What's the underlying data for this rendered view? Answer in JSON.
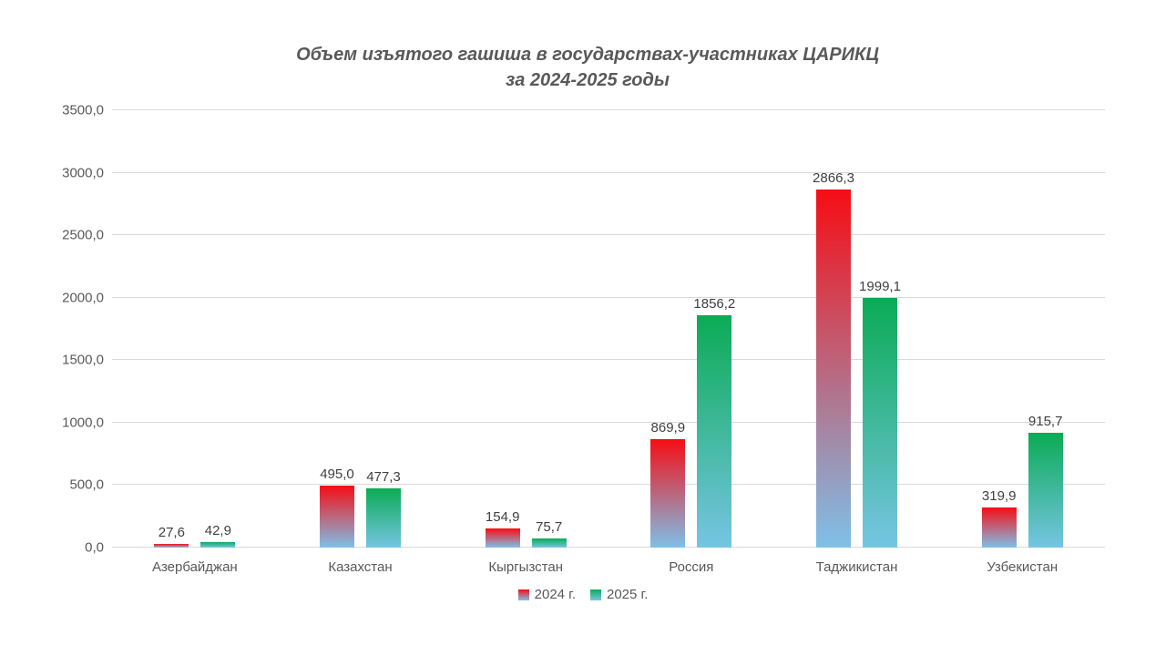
{
  "title": {
    "line1": "Объем изъятого гашиша в государствах-участниках ЦАРИКЦ",
    "line2": "за 2024-2025 годы"
  },
  "colors": {
    "background": "#ffffff",
    "title_text": "#595959",
    "axis_text": "#595959",
    "data_label_text": "#404040",
    "gridline": "#d9d9d9",
    "series_2024_top": "#f60d14",
    "series_2024_bottom": "#7fc0e8",
    "series_2025_top": "#0bab55",
    "series_2025_bottom": "#76c5e3"
  },
  "legend": {
    "items": [
      {
        "label": "2024 г.",
        "series_key": "2024"
      },
      {
        "label": "2025 г.",
        "series_key": "2025"
      }
    ]
  },
  "chart_data": {
    "type": "bar",
    "title": "Объем изъятого гашиша в государствах-участниках ЦАРИКЦ за 2024-2025 годы",
    "categories": [
      "Азербайджан",
      "Казахстан",
      "Кыргызстан",
      "Россия",
      "Таджикистан",
      "Узбекистан"
    ],
    "series": [
      {
        "name": "2024 г.",
        "values": [
          27.6,
          495.0,
          154.9,
          869.9,
          2866.3,
          319.9
        ],
        "labels": [
          "27,6",
          "495,0",
          "154,9",
          "869,9",
          "2866,3",
          "319,9"
        ]
      },
      {
        "name": "2025 г.",
        "values": [
          42.9,
          477.3,
          75.7,
          1856.2,
          1999.1,
          915.7
        ],
        "labels": [
          "42,9",
          "477,3",
          "75,7",
          "1856,2",
          "1999,1",
          "915,7"
        ]
      }
    ],
    "xlabel": "",
    "ylabel": "",
    "ylim": [
      0,
      3500
    ],
    "ytick_step": 500,
    "ytick_labels": [
      "0,0",
      "500,0",
      "1000,0",
      "1500,0",
      "2000,0",
      "2500,0",
      "3000,0",
      "3500,0"
    ],
    "grid": true,
    "legend_position": "bottom"
  }
}
